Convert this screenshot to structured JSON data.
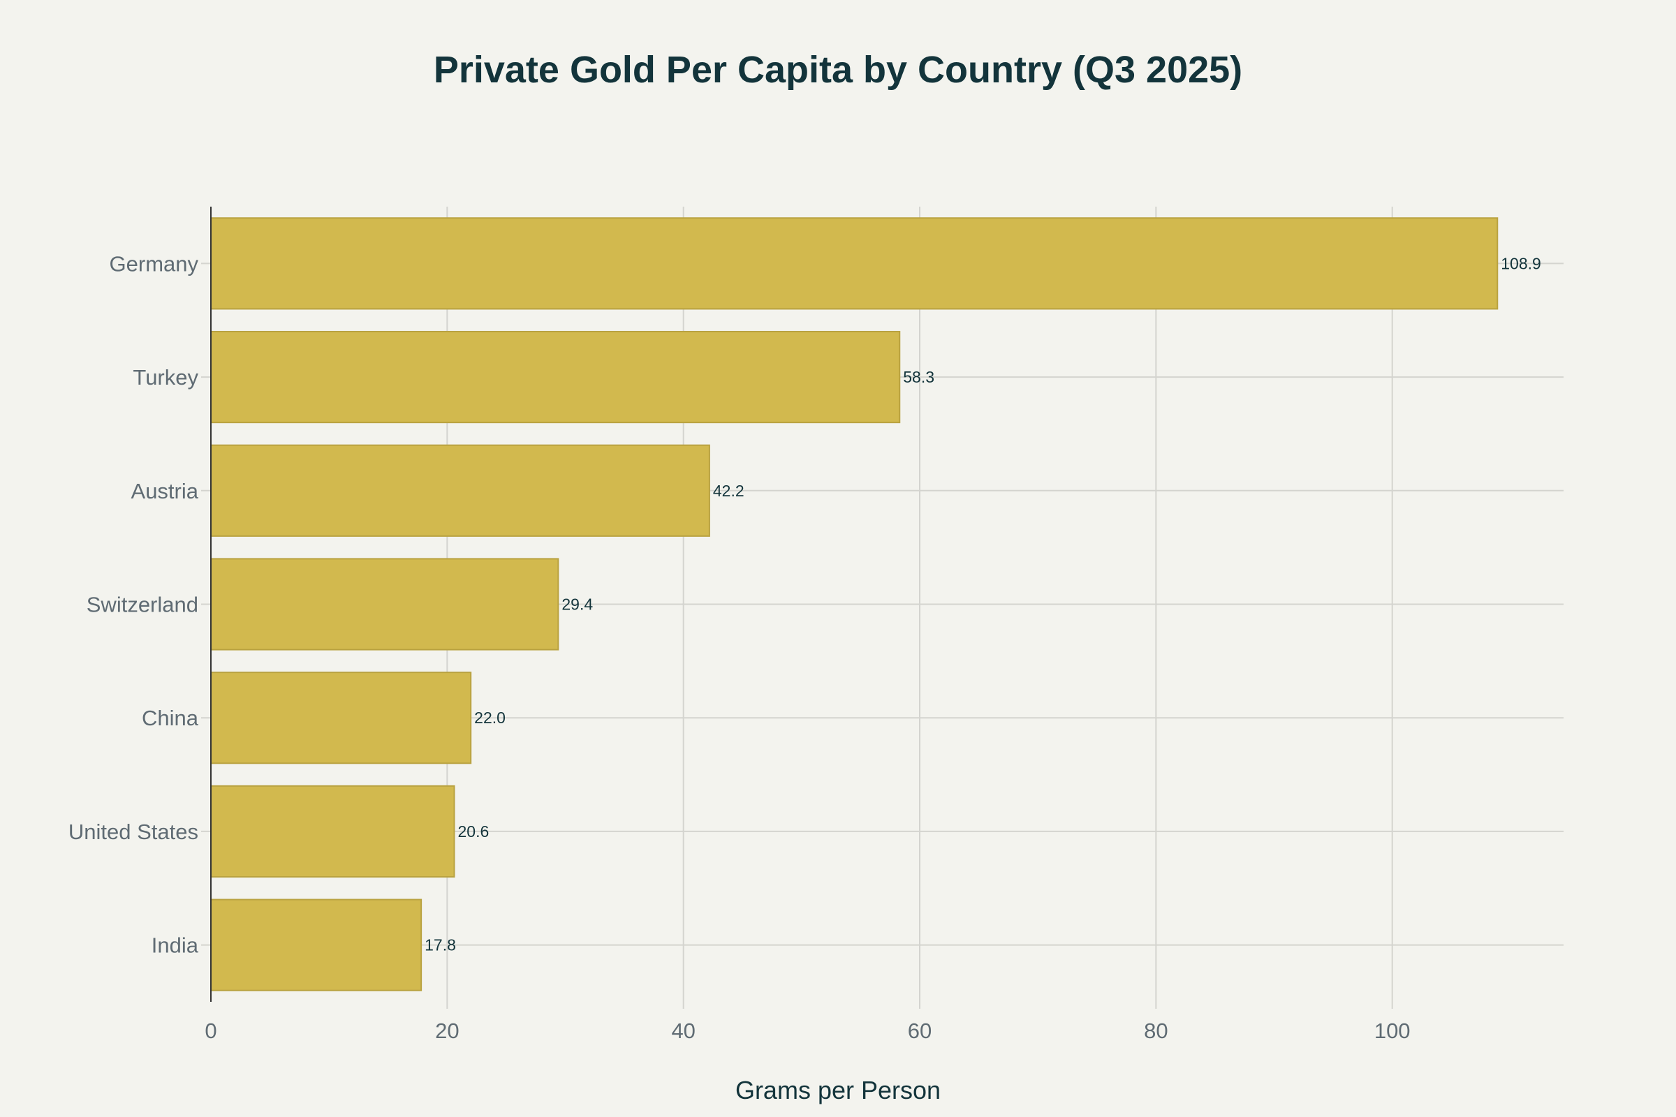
{
  "chart_data": {
    "type": "bar",
    "orientation": "horizontal",
    "title": "Private Gold Per Capita by Country (Q3 2025)",
    "xlabel": "Grams per Person",
    "ylabel": "",
    "categories": [
      "Germany",
      "Turkey",
      "Austria",
      "Switzerland",
      "China",
      "United States",
      "India"
    ],
    "values": [
      108.9,
      58.3,
      42.2,
      29.4,
      22.0,
      20.6,
      17.8
    ],
    "data_labels": [
      "108.9",
      "58.3",
      "42.2",
      "29.4",
      "22.0",
      "20.6",
      "17.8"
    ],
    "xlim": [
      0,
      114.5
    ],
    "xticks": [
      "0",
      "20",
      "40",
      "60",
      "80",
      "100"
    ],
    "grid": true,
    "colors": {
      "bar": "#d2b94e",
      "bar_edge": "#b9a240",
      "background": "#f3f3ee",
      "grid": "#d4d4cf",
      "title": "#13343b"
    }
  }
}
